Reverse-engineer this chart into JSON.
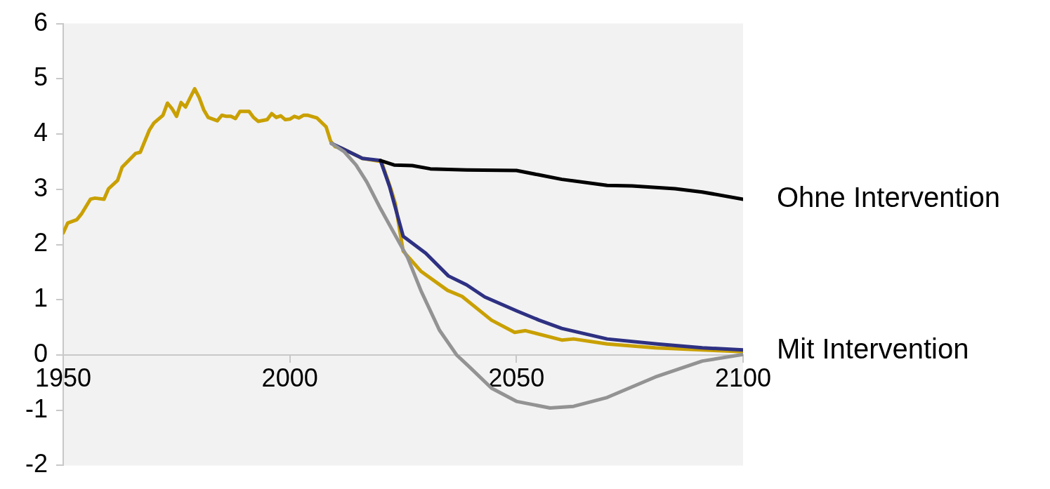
{
  "chart_data": {
    "type": "line",
    "xlim": [
      1950,
      2100
    ],
    "xticks": [
      1950,
      2000,
      2050,
      2100
    ],
    "ylim": [
      -2,
      6
    ],
    "yticks": [
      -2,
      -1,
      0,
      1,
      2,
      3,
      4,
      5,
      6
    ],
    "grid": false,
    "legend": false,
    "marker": "none",
    "line_style": "solid",
    "series": [
      {
        "color": "#000000",
        "x": [
          2020,
          2023,
          2027,
          2031,
          2039,
          2050,
          2055,
          2060,
          2070,
          2075.5,
          2085,
          2091,
          2100
        ],
        "values": [
          3.52,
          3.44,
          3.43,
          3.37,
          3.35,
          3.34,
          3.26,
          3.18,
          3.07,
          3.06,
          3.01,
          2.95,
          2.82
        ]
      },
      {
        "color": "#939393",
        "x": [
          2009.2,
          2012,
          2014.6,
          2017,
          2020,
          2023.3,
          2026,
          2029,
          2033,
          2036.8,
          2039.4,
          2044.5,
          2050,
          2057.4,
          2062.6,
          2070,
          2080.6,
          2091,
          2100
        ],
        "values": [
          3.83,
          3.68,
          3.44,
          3.13,
          2.65,
          2.16,
          1.76,
          1.15,
          0.45,
          0,
          -0.2,
          -0.6,
          -0.84,
          -0.96,
          -0.93,
          -0.77,
          -0.4,
          -0.11,
          0.01
        ]
      },
      {
        "color": "#2e3182",
        "x": [
          2009.2,
          2011.5,
          2016,
          2020,
          2022,
          2025,
          2030,
          2035,
          2039,
          2043,
          2050,
          2055,
          2060,
          2070,
          2081,
          2091,
          2100
        ],
        "values": [
          3.83,
          3.74,
          3.56,
          3.52,
          3.05,
          2.15,
          1.84,
          1.43,
          1.27,
          1.05,
          0.8,
          0.63,
          0.48,
          0.29,
          0.2,
          0.13,
          0.09
        ]
      },
      {
        "color": "#c9a000",
        "x": [
          1950,
          1951,
          1953,
          1954,
          1956,
          1957,
          1959,
          1960,
          1962,
          1963,
          1966,
          1967,
          1969,
          1970,
          1972,
          1973,
          1974,
          1975,
          1976,
          1977,
          1979,
          1980,
          1981,
          1982,
          1984,
          1985,
          1986,
          1987,
          1988,
          1989,
          1991,
          1992,
          1993,
          1995,
          1996,
          1997,
          1998,
          1999,
          2000,
          2001,
          2002,
          2003,
          2004,
          2006,
          2008,
          2009,
          2010,
          2011.5,
          2016,
          2020.2,
          2022.4,
          2023.3,
          2025,
          2029,
          2034.8,
          2038,
          2044.5,
          2049.6,
          2052,
          2060,
          2062.6,
          2070,
          2080.6,
          2091,
          2100
        ],
        "values": [
          2.21,
          2.39,
          2.45,
          2.55,
          2.82,
          2.84,
          2.82,
          3.01,
          3.16,
          3.4,
          3.65,
          3.67,
          4.07,
          4.2,
          4.34,
          4.56,
          4.46,
          4.32,
          4.57,
          4.49,
          4.82,
          4.66,
          4.44,
          4.3,
          4.24,
          4.34,
          4.32,
          4.32,
          4.28,
          4.41,
          4.41,
          4.3,
          4.23,
          4.26,
          4.37,
          4.3,
          4.33,
          4.26,
          4.27,
          4.32,
          4.29,
          4.34,
          4.34,
          4.29,
          4.13,
          3.87,
          3.77,
          3.74,
          3.56,
          3.5,
          2.98,
          2.73,
          1.88,
          1.51,
          1.17,
          1.06,
          0.63,
          0.41,
          0.44,
          0.27,
          0.29,
          0.2,
          0.13,
          0.09,
          0.06
        ]
      }
    ],
    "annotations": [
      {
        "text": "Ohne Intervention",
        "x": 2100,
        "y": 2.82
      },
      {
        "text": "Mit Intervention",
        "x": 2100,
        "y": 0.07
      }
    ]
  }
}
